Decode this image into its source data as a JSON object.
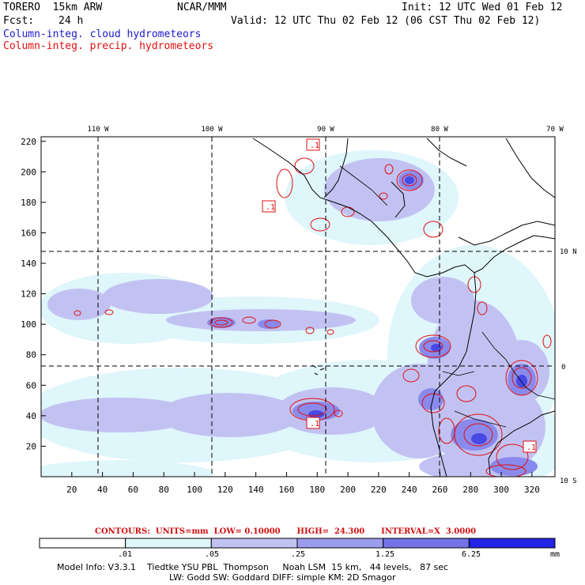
{
  "header": {
    "model": "TORERO  15km ARW",
    "center": "NCAR/MMM",
    "init": "Init: 12 UTC Wed 01 Feb 12",
    "fcst_label": "Fcst:",
    "fcst_value": "24 h",
    "valid": "Valid: 12 UTC Thu 02 Feb 12 (06 CST Thu 02 Feb 12)",
    "field1": "Column-integ. cloud hydrometeors",
    "field2": "Column-integ. precip. hydrometeors"
  },
  "colors": {
    "field1": "#1a1acc",
    "field2": "#e01010",
    "contour": "#e01010",
    "shade_levels": [
      "#ffffff",
      "#dff6fb",
      "#c2c2f2",
      "#9c9cee",
      "#7474e8",
      "#4848e4",
      "#2424e6"
    ]
  },
  "map": {
    "x_ticks": [
      "20",
      "40",
      "60",
      "80",
      "100",
      "120",
      "140",
      "160",
      "180",
      "200",
      "220",
      "240",
      "260",
      "280",
      "300",
      "320"
    ],
    "y_ticks": [
      "20",
      "40",
      "60",
      "80",
      "100",
      "120",
      "140",
      "160",
      "180",
      "200",
      "220"
    ],
    "lon_labels": [
      "110 W",
      "100 W",
      "90 W",
      "80 W",
      "70 W"
    ],
    "lat_labels": [
      "10 N",
      "0",
      "10 S"
    ],
    "contour_labels": [
      ".1",
      ".1",
      ".1",
      ".1"
    ]
  },
  "contours_info": "CONTOURS:  UNITS=mm  LOW= 0.10000      HIGH=  24.300      INTERVAL=X  3.0000",
  "colorbar": {
    "labels": [
      ".01",
      ".05",
      ".25",
      "1.25",
      "6.25"
    ],
    "unit": "mm"
  },
  "footer": {
    "line1": "Model Info: V3.3.1    Tiedtke YSU PBL  Thompson     Noah LSM  15 km,   44 levels,   87 sec",
    "line2": "LW: Godd SW: Goddard DIFF: simple KM: 2D Smagor"
  }
}
